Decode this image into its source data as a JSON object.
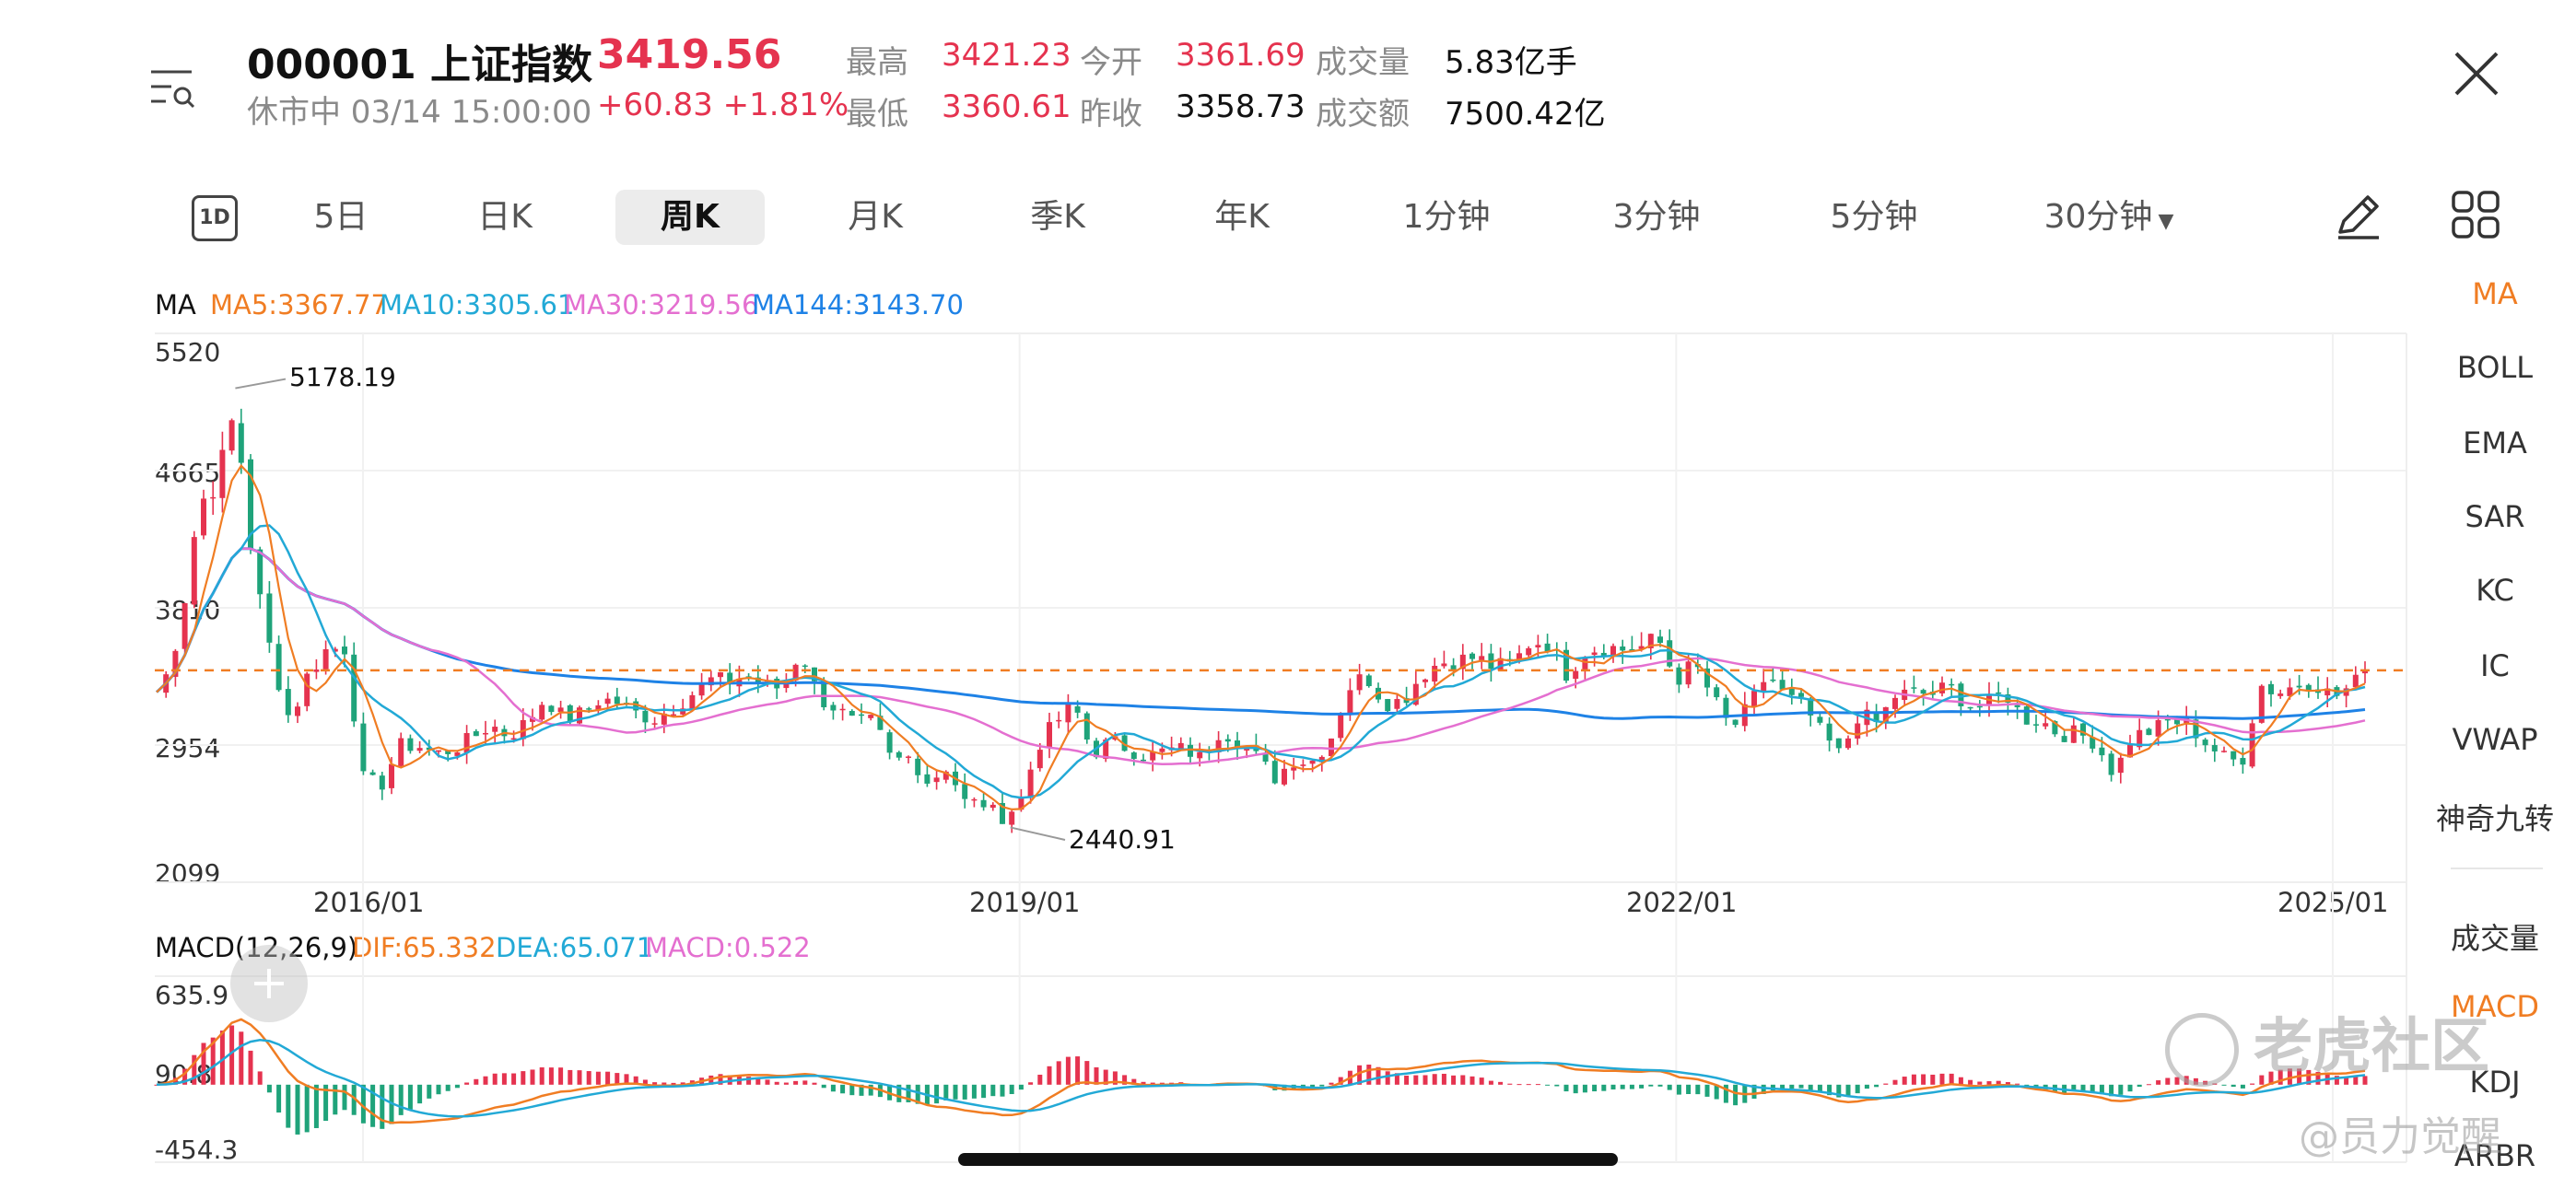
{
  "header": {
    "code": "000001",
    "name": "上证指数",
    "price": "3419.56",
    "status": "休市中 03/14 15:00:00",
    "change": "+60.83",
    "change_pct": "+1.81%",
    "high_label": "最高",
    "high": "3421.23",
    "open_label": "今开",
    "open": "3361.69",
    "volume_label": "成交量",
    "volume": "5.83亿手",
    "low_label": "最低",
    "low": "3360.61",
    "prev_close_label": "昨收",
    "prev_close": "3358.73",
    "turnover_label": "成交额",
    "turnover": "7500.42亿"
  },
  "periods": {
    "icon_text": "1D",
    "items": [
      "5日",
      "日K",
      "周K",
      "月K",
      "季K",
      "年K",
      "1分钟",
      "3分钟",
      "5分钟",
      "30分钟"
    ],
    "active": "周K"
  },
  "sidebar": {
    "indicators": [
      "MA",
      "BOLL",
      "EMA",
      "SAR",
      "KC",
      "IC",
      "VWAP",
      "神奇九转"
    ],
    "sub_indicators": [
      "成交量",
      "MACD",
      "KDJ",
      "ARBR"
    ],
    "active_main": "MA",
    "active_sub": "MACD"
  },
  "legend": {
    "ma_title": "MA",
    "ma5": "MA5:3367.77",
    "ma10": "MA10:3305.61",
    "ma30": "MA30:3219.56",
    "ma144": "MA144:3143.70",
    "macd_title": "MACD(12,26,9)",
    "dif": "DIF:65.332",
    "dea": "DEA:65.071",
    "macd": "MACD:0.522"
  },
  "colors": {
    "up": "#e5334f",
    "down": "#1fa37a",
    "ma5": "#f07d23",
    "ma10": "#22a9d6",
    "ma30": "#e46fd0",
    "ma144": "#1e82e6",
    "ref_line": "#f07d23"
  },
  "chart_data": [
    {
      "type": "candlestick",
      "y_ticks": [
        "5520",
        "4665",
        "3810",
        "2954",
        "2099"
      ],
      "x_ticks": [
        "2016/01",
        "2019/01",
        "2022/01",
        "2025/01"
      ],
      "ylim": [
        2099,
        5520
      ],
      "annotations": [
        {
          "text": "5178.19",
          "x": "2015-06",
          "y": 5178.19
        },
        {
          "text": "2440.91",
          "x": "2019-01",
          "y": 2440.91
        }
      ],
      "reference_line": 3419.56,
      "grid": true,
      "series": [
        {
          "name": "MA5",
          "value": "3367.77"
        },
        {
          "name": "MA10",
          "value": "3305.61"
        },
        {
          "name": "MA30",
          "value": "3219.56"
        },
        {
          "name": "MA144",
          "value": "3143.70"
        }
      ],
      "close_path": [
        [
          "2015-01",
          3230
        ],
        [
          "2015-02",
          3310
        ],
        [
          "2015-03",
          3700
        ],
        [
          "2015-04",
          4450
        ],
        [
          "2015-05",
          4600
        ],
        [
          "2015-06",
          5050
        ],
        [
          "2015-07",
          4050
        ],
        [
          "2015-08",
          3500
        ],
        [
          "2015-09",
          3100
        ],
        [
          "2015-10",
          3400
        ],
        [
          "2015-11",
          3550
        ],
        [
          "2015-12",
          3560
        ],
        [
          "2016-01",
          2750
        ],
        [
          "2016-02",
          2700
        ],
        [
          "2016-03",
          2950
        ],
        [
          "2016-04",
          2950
        ],
        [
          "2016-05",
          2900
        ],
        [
          "2016-06",
          2930
        ],
        [
          "2016-07",
          3000
        ],
        [
          "2016-08",
          3080
        ],
        [
          "2016-09",
          3010
        ],
        [
          "2016-10",
          3100
        ],
        [
          "2016-11",
          3250
        ],
        [
          "2016-12",
          3120
        ],
        [
          "2017-01",
          3150
        ],
        [
          "2017-02",
          3240
        ],
        [
          "2017-03",
          3220
        ],
        [
          "2017-04",
          3150
        ],
        [
          "2017-05",
          3120
        ],
        [
          "2017-06",
          3190
        ],
        [
          "2017-07",
          3270
        ],
        [
          "2017-08",
          3360
        ],
        [
          "2017-09",
          3350
        ],
        [
          "2017-10",
          3390
        ],
        [
          "2017-11",
          3320
        ],
        [
          "2017-12",
          3310
        ],
        [
          "2018-01",
          3550
        ],
        [
          "2018-02",
          3250
        ],
        [
          "2018-03",
          3180
        ],
        [
          "2018-04",
          3080
        ],
        [
          "2018-05",
          3100
        ],
        [
          "2018-06",
          2850
        ],
        [
          "2018-07",
          2880
        ],
        [
          "2018-08",
          2720
        ],
        [
          "2018-09",
          2820
        ],
        [
          "2018-10",
          2600
        ],
        [
          "2018-11",
          2590
        ],
        [
          "2018-12",
          2500
        ],
        [
          "2019-01",
          2590
        ],
        [
          "2019-02",
          2950
        ],
        [
          "2019-03",
          3100
        ],
        [
          "2019-04",
          3200
        ],
        [
          "2019-05",
          2900
        ],
        [
          "2019-06",
          2980
        ],
        [
          "2019-07",
          2930
        ],
        [
          "2019-08",
          2880
        ],
        [
          "2019-09",
          2920
        ],
        [
          "2019-10",
          2930
        ],
        [
          "2019-11",
          2870
        ],
        [
          "2019-12",
          3050
        ],
        [
          "2020-01",
          2980
        ],
        [
          "2020-02",
          2880
        ],
        [
          "2020-03",
          2750
        ],
        [
          "2020-04",
          2860
        ],
        [
          "2020-05",
          2850
        ],
        [
          "2020-06",
          2980
        ],
        [
          "2020-07",
          3310
        ],
        [
          "2020-08",
          3390
        ],
        [
          "2020-09",
          3220
        ],
        [
          "2020-10",
          3230
        ],
        [
          "2020-11",
          3390
        ],
        [
          "2020-12",
          3470
        ],
        [
          "2021-01",
          3480
        ],
        [
          "2021-02",
          3500
        ],
        [
          "2021-03",
          3440
        ],
        [
          "2021-04",
          3450
        ],
        [
          "2021-05",
          3600
        ],
        [
          "2021-06",
          3590
        ],
        [
          "2021-07",
          3400
        ],
        [
          "2021-08",
          3540
        ],
        [
          "2021-09",
          3570
        ],
        [
          "2021-10",
          3550
        ],
        [
          "2021-11",
          3560
        ],
        [
          "2021-12",
          3620
        ],
        [
          "2022-01",
          3360
        ],
        [
          "2022-02",
          3460
        ],
        [
          "2022-03",
          3250
        ],
        [
          "2022-04",
          3050
        ],
        [
          "2022-05",
          3190
        ],
        [
          "2022-06",
          3400
        ],
        [
          "2022-07",
          3250
        ],
        [
          "2022-08",
          3200
        ],
        [
          "2022-09",
          3020
        ],
        [
          "2022-10",
          2890
        ],
        [
          "2022-11",
          3150
        ],
        [
          "2022-12",
          3090
        ],
        [
          "2023-01",
          3260
        ],
        [
          "2023-02",
          3280
        ],
        [
          "2023-03",
          3270
        ],
        [
          "2023-04",
          3320
        ],
        [
          "2023-05",
          3200
        ],
        [
          "2023-06",
          3200
        ],
        [
          "2023-07",
          3290
        ],
        [
          "2023-08",
          3120
        ],
        [
          "2023-09",
          3110
        ],
        [
          "2023-10",
          3020
        ],
        [
          "2023-11",
          3030
        ],
        [
          "2023-12",
          2970
        ],
        [
          "2024-01",
          2770
        ],
        [
          "2024-02",
          3010
        ],
        [
          "2024-03",
          3040
        ],
        [
          "2024-04",
          3100
        ],
        [
          "2024-05",
          3090
        ],
        [
          "2024-06",
          2970
        ],
        [
          "2024-07",
          2880
        ],
        [
          "2024-08",
          2840
        ],
        [
          "2024-09",
          3330
        ],
        [
          "2024-10",
          3280
        ],
        [
          "2024-11",
          3330
        ],
        [
          "2024-12",
          3350
        ],
        [
          "2025-01",
          3250
        ],
        [
          "2025-02",
          3320
        ],
        [
          "2025-03",
          3419.56
        ]
      ]
    },
    {
      "type": "macd",
      "y_ticks": [
        "635.9",
        "90.8",
        "-454.3"
      ],
      "ylim": [
        -454.3,
        635.9
      ],
      "series": [
        {
          "name": "DIF",
          "value": "65.332"
        },
        {
          "name": "DEA",
          "value": "65.071"
        },
        {
          "name": "MACD",
          "value": "0.522"
        }
      ]
    }
  ],
  "watermark": {
    "brand": "老虎社区",
    "handle": "@员力觉醒"
  }
}
